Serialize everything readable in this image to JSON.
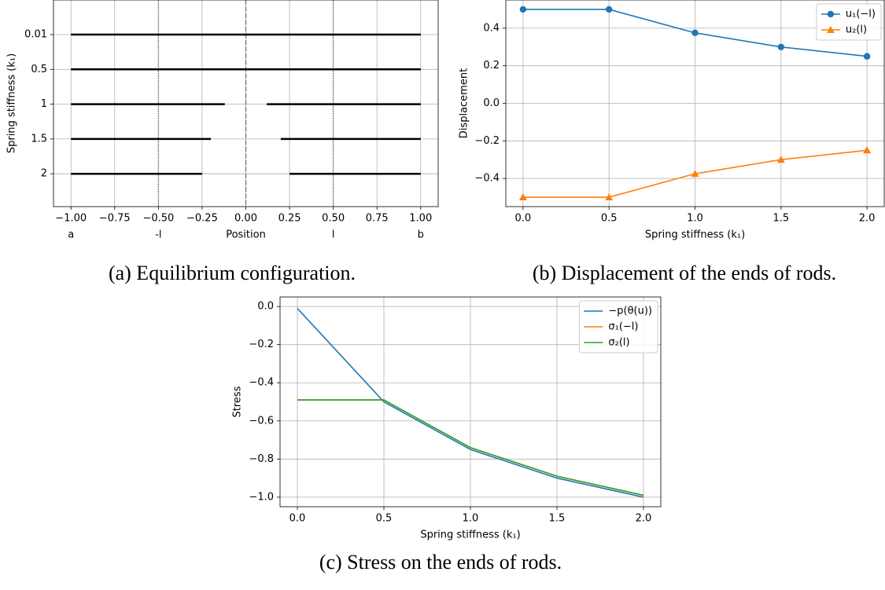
{
  "chart_data": [
    {
      "type": "segments",
      "caption": "(a) Equilibrium configuration.",
      "xlabel": "Position",
      "ylabel": "Spring stiffness (k₁)",
      "categories": [
        "0.01",
        "0.5",
        "1",
        "1.5",
        "2"
      ],
      "segments": [
        [
          [
            -1,
            1
          ]
        ],
        [
          [
            -1,
            1
          ]
        ],
        [
          [
            -1,
            -0.12
          ],
          [
            0.12,
            1
          ]
        ],
        [
          [
            -1,
            -0.2
          ],
          [
            0.2,
            1
          ]
        ],
        [
          [
            -1,
            -0.25
          ],
          [
            0.25,
            1
          ]
        ]
      ],
      "color": "#000000",
      "vlines": [
        {
          "x": -0.5,
          "style": "dotted"
        },
        {
          "x": 0,
          "style": "dashed"
        },
        {
          "x": 0.5,
          "style": "dotted"
        }
      ],
      "x_markers": [
        {
          "value": -1,
          "label": "a"
        },
        {
          "value": -0.5,
          "label": "-l"
        },
        {
          "value": 0.5,
          "label": "l"
        },
        {
          "value": 1,
          "label": "b"
        }
      ],
      "xlim": [
        -1.1,
        1.1
      ],
      "xticks": [
        {
          "value": -1,
          "label": "−1.00"
        },
        {
          "value": -0.75,
          "label": "−0.75"
        },
        {
          "value": -0.5,
          "label": "−0.50"
        },
        {
          "value": -0.25,
          "label": "−0.25"
        },
        {
          "value": 0,
          "label": "0.00"
        },
        {
          "value": 0.25,
          "label": "0.25"
        },
        {
          "value": 0.5,
          "label": "0.50"
        },
        {
          "value": 0.75,
          "label": "0.75"
        },
        {
          "value": 1,
          "label": "1.00"
        }
      ],
      "grid": true
    },
    {
      "type": "line",
      "caption": "(b) Displacement of the ends of rods.",
      "xlabel": "Spring stiffness (k₁)",
      "ylabel": "Displacement",
      "x": [
        0,
        0.5,
        1,
        1.5,
        2
      ],
      "series": [
        {
          "name": "u₁(−l)",
          "color": "#1f77b4",
          "marker": "circle",
          "values": [
            0.5,
            0.5,
            0.375,
            0.3,
            0.25
          ]
        },
        {
          "name": "u₂(l)",
          "color": "#ff7f0e",
          "marker": "triangle",
          "values": [
            -0.5,
            -0.5,
            -0.375,
            -0.3,
            -0.25
          ]
        }
      ],
      "xlim": [
        -0.1,
        2.1
      ],
      "xticks": [
        {
          "value": 0,
          "label": "0.0"
        },
        0.5,
        {
          "value": 1,
          "label": "1.0"
        },
        1.5,
        {
          "value": 2,
          "label": "2.0"
        }
      ],
      "ylim": [
        -0.55,
        0.55
      ],
      "yticks": [
        {
          "value": -0.4,
          "label": "−0.4"
        },
        {
          "value": -0.2,
          "label": "−0.2"
        },
        {
          "value": 0,
          "label": "0.0"
        },
        0.2,
        0.4
      ],
      "grid": true,
      "legend": "upper right"
    },
    {
      "type": "line",
      "caption": "(c) Stress on the ends of rods.",
      "xlabel": "Spring stiffness (k₁)",
      "ylabel": "Stress",
      "x": [
        0,
        0.5,
        1,
        1.5,
        2
      ],
      "series": [
        {
          "name": "−p(θ(u))",
          "color": "#1f77b4",
          "values": [
            -0.01,
            -0.5,
            -0.75,
            -0.9,
            -1.0
          ]
        },
        {
          "name": "σ₁(−l)",
          "color": "#ff7f0e",
          "values": [
            -0.49,
            -0.49,
            -0.74,
            -0.89,
            -0.99
          ]
        },
        {
          "name": "σ₂(l)",
          "color": "#2ca02c",
          "values": [
            -0.49,
            -0.49,
            -0.74,
            -0.89,
            -0.99
          ]
        }
      ],
      "xlim": [
        -0.1,
        2.1
      ],
      "xticks": [
        {
          "value": 0,
          "label": "0.0"
        },
        0.5,
        {
          "value": 1,
          "label": "1.0"
        },
        1.5,
        {
          "value": 2,
          "label": "2.0"
        }
      ],
      "ylim": [
        -1.05,
        0.05
      ],
      "yticks": [
        {
          "value": -1,
          "label": "−1.0"
        },
        {
          "value": -0.8,
          "label": "−0.8"
        },
        {
          "value": -0.6,
          "label": "−0.6"
        },
        {
          "value": -0.4,
          "label": "−0.4"
        },
        {
          "value": -0.2,
          "label": "−0.2"
        },
        {
          "value": 0,
          "label": "0.0"
        }
      ],
      "grid": true,
      "legend": "upper right"
    }
  ]
}
